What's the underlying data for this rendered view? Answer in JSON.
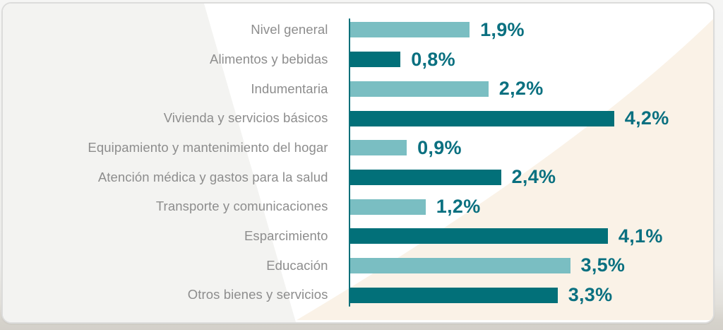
{
  "chart_data": {
    "type": "bar",
    "orientation": "horizontal",
    "title": "",
    "xlabel": "",
    "ylabel": "",
    "xlim": [
      0,
      4.7
    ],
    "grid": false,
    "legend": "none",
    "units": "%",
    "decimal_separator": ",",
    "categories": [
      "Nivel general",
      "Alimentos y bebidas",
      "Indumentaria",
      "Vivienda y servicios básicos",
      "Equipamiento y mantenimiento del hogar",
      "Atención médica y gastos para la salud",
      "Transporte y comunicaciones",
      "Esparcimiento",
      "Educación",
      "Otros bienes y servicios"
    ],
    "values": [
      1.9,
      0.8,
      2.2,
      4.2,
      0.9,
      2.4,
      1.2,
      4.1,
      3.5,
      3.3
    ],
    "value_labels": [
      "1,9%",
      "0,8%",
      "2,2%",
      "4,2%",
      "0,9%",
      "2,4%",
      "1,2%",
      "4,1%",
      "3,5%",
      "3,3%"
    ]
  },
  "colors": {
    "bar_light": "#7abec2",
    "bar_dark": "#027079",
    "value_text": "#0a7080",
    "label_text": "#8d8d8d",
    "axis_line": "#026f79",
    "card_bg_white": "#ffffff",
    "card_bg_gray": "#f3f3f1",
    "card_bg_cream": "#faf2e7",
    "card_border": "#dcdcdb",
    "page_bottom_strip": "#d6d3cc"
  },
  "layout_hints": {
    "bars_alternate_colors": "light,dark,light,dark,...",
    "labels_right_aligned": true,
    "value_labels_at_bar_end": true
  }
}
